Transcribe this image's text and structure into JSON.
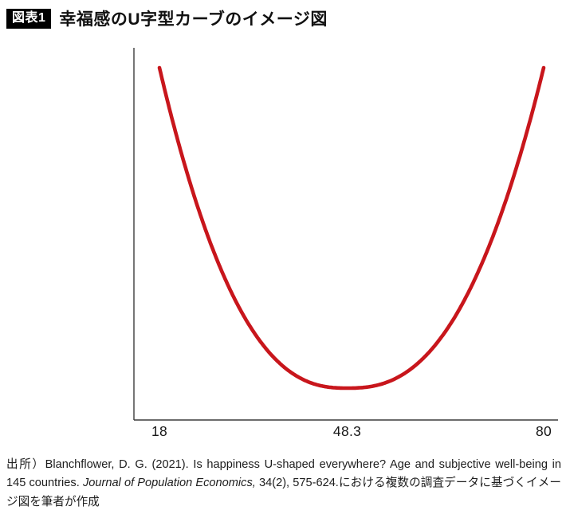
{
  "figure": {
    "badge": "図表1",
    "title": "幸福感のU字型カーブのイメージ図"
  },
  "chart_data": {
    "type": "line",
    "title": "幸福感のU字型カーブのイメージ図",
    "description": "Illustrative U-shaped curve of happiness (subjective well-being) by age; minimum at age 48.3",
    "xlabel": "",
    "ylabel": "",
    "x_range": [
      18,
      80
    ],
    "x_ticks": [
      18,
      48.3,
      80
    ],
    "x_tick_labels": [
      "18",
      "48.3",
      "80"
    ],
    "y_axis_labeled": false,
    "grid": false,
    "legend": false,
    "axes_color": "#3c3c3c",
    "curve": {
      "shape": "u-curve",
      "minimum_x": 48.3,
      "exponent": 2.5,
      "color": "#c8161c",
      "stroke_width": 4.6
    },
    "series": [
      {
        "name": "happiness-u-curve",
        "points_x_relheight": [
          [
            18,
            1.0
          ],
          [
            25,
            0.52
          ],
          [
            30,
            0.28
          ],
          [
            35,
            0.13
          ],
          [
            40,
            0.04
          ],
          [
            44,
            0.008
          ],
          [
            48.3,
            0.0
          ],
          [
            53,
            0.008
          ],
          [
            58,
            0.05
          ],
          [
            63,
            0.15
          ],
          [
            68,
            0.3
          ],
          [
            74,
            0.59
          ],
          [
            80,
            1.0
          ]
        ]
      }
    ]
  },
  "source": {
    "segments": [
      {
        "text": "出所）Blanchflower, D. G. (2021). Is happiness U-shaped everywhere? Age and subjective well-being in 145 countries. ",
        "style": "normal"
      },
      {
        "text": "Journal of Population Economics,",
        "style": "italic"
      },
      {
        "text": " 34(2), 575-624.における複数の調査データに基づくイメージ図を筆者が作成",
        "style": "normal"
      }
    ]
  }
}
